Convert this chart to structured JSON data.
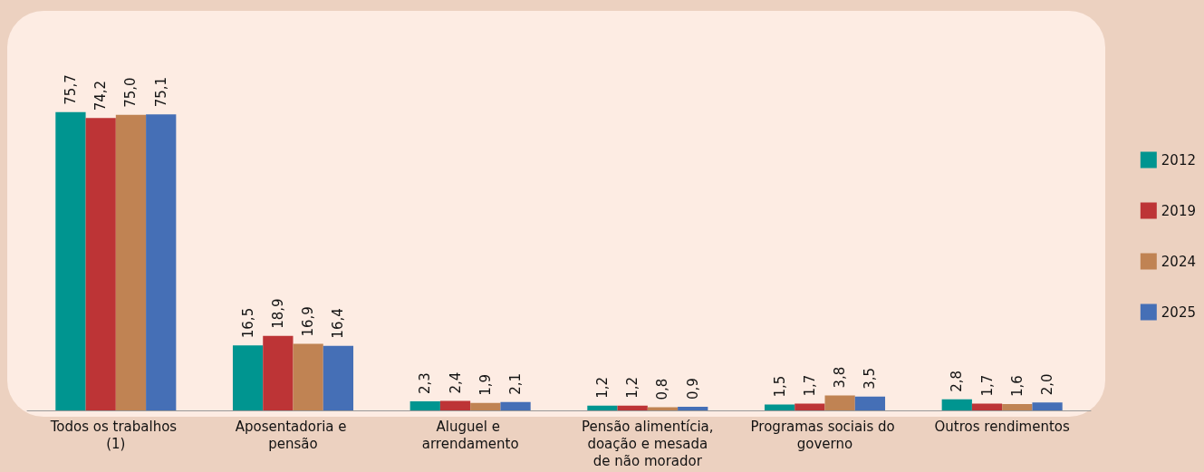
{
  "chart_data": {
    "type": "bar",
    "categories": [
      "Todos os trabalhos (1)",
      "Aposentadoria e pensão",
      "Aluguel e arrendamento",
      "Pensão alimentícia, doação e mesada de não morador",
      "Programas sociais do governo",
      "Outros rendimentos"
    ],
    "series": [
      {
        "name": "2012",
        "color": "#009590",
        "values": [
          75.7,
          16.5,
          2.3,
          1.2,
          1.5,
          2.8
        ],
        "value_labels": [
          "75,7",
          "16,5",
          "2,3",
          "1,2",
          "1,5",
          "2,8"
        ]
      },
      {
        "name": "2019",
        "color": "#bd3436",
        "values": [
          74.2,
          18.9,
          2.4,
          1.2,
          1.7,
          1.7
        ],
        "value_labels": [
          "74,2",
          "18,9",
          "2,4",
          "1,2",
          "1,7",
          "1,7"
        ]
      },
      {
        "name": "2024",
        "color": "#c08353",
        "values": [
          75.0,
          16.9,
          1.9,
          0.8,
          3.8,
          1.6
        ],
        "value_labels": [
          "75,0",
          "16,9",
          "1,9",
          "0,8",
          "3,8",
          "1,6"
        ]
      },
      {
        "name": "2025",
        "color": "#456fb6",
        "values": [
          75.1,
          16.4,
          2.1,
          0.9,
          3.5,
          2.0
        ],
        "value_labels": [
          "75,1",
          "16,4",
          "2,1",
          "0,9",
          "3,5",
          "2,0"
        ]
      }
    ],
    "legend": "right",
    "tick_labels": "x"
  }
}
